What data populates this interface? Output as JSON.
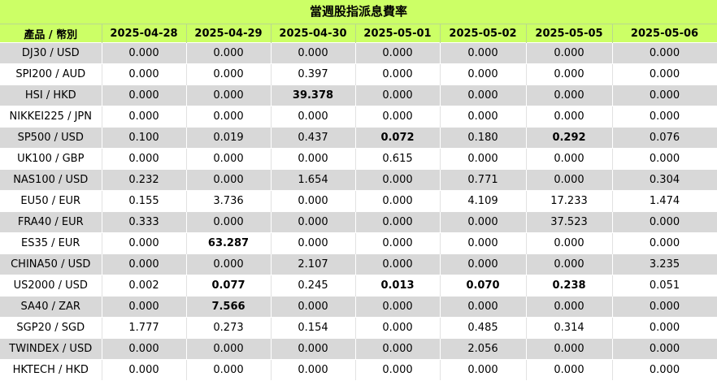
{
  "title": "當週股指派息費率",
  "header": {
    "product_label": "產品 / 幣別",
    "dates": [
      "2025-04-28",
      "2025-04-29",
      "2025-04-30",
      "2025-05-01",
      "2025-05-02",
      "2025-05-05",
      "2025-05-06"
    ]
  },
  "rows": [
    {
      "product": "DJ30 / USD",
      "values": [
        "0.000",
        "0.000",
        "0.000",
        "0.000",
        "0.000",
        "0.000",
        "0.000"
      ],
      "bold": []
    },
    {
      "product": "SPI200 / AUD",
      "values": [
        "0.000",
        "0.000",
        "0.397",
        "0.000",
        "0.000",
        "0.000",
        "0.000"
      ],
      "bold": []
    },
    {
      "product": "HSI / HKD",
      "values": [
        "0.000",
        "0.000",
        "39.378",
        "0.000",
        "0.000",
        "0.000",
        "0.000"
      ],
      "bold": [
        2
      ]
    },
    {
      "product": "NIKKEI225 / JPN",
      "values": [
        "0.000",
        "0.000",
        "0.000",
        "0.000",
        "0.000",
        "0.000",
        "0.000"
      ],
      "bold": []
    },
    {
      "product": "SP500 / USD",
      "values": [
        "0.100",
        "0.019",
        "0.437",
        "0.072",
        "0.180",
        "0.292",
        "0.076"
      ],
      "bold": [
        3,
        5
      ]
    },
    {
      "product": "UK100 / GBP",
      "values": [
        "0.000",
        "0.000",
        "0.000",
        "0.615",
        "0.000",
        "0.000",
        "0.000"
      ],
      "bold": []
    },
    {
      "product": "NAS100 / USD",
      "values": [
        "0.232",
        "0.000",
        "1.654",
        "0.000",
        "0.771",
        "0.000",
        "0.304"
      ],
      "bold": []
    },
    {
      "product": "EU50 / EUR",
      "values": [
        "0.155",
        "3.736",
        "0.000",
        "0.000",
        "4.109",
        "17.233",
        "1.474"
      ],
      "bold": []
    },
    {
      "product": "FRA40 / EUR",
      "values": [
        "0.333",
        "0.000",
        "0.000",
        "0.000",
        "0.000",
        "37.523",
        "0.000"
      ],
      "bold": []
    },
    {
      "product": "ES35 / EUR",
      "values": [
        "0.000",
        "63.287",
        "0.000",
        "0.000",
        "0.000",
        "0.000",
        "0.000"
      ],
      "bold": [
        1
      ]
    },
    {
      "product": "CHINA50 / USD",
      "values": [
        "0.000",
        "0.000",
        "2.107",
        "0.000",
        "0.000",
        "0.000",
        "3.235"
      ],
      "bold": []
    },
    {
      "product": "US2000 / USD",
      "values": [
        "0.002",
        "0.077",
        "0.245",
        "0.013",
        "0.070",
        "0.238",
        "0.051"
      ],
      "bold": [
        1,
        3,
        4,
        5
      ]
    },
    {
      "product": "SA40 / ZAR",
      "values": [
        "0.000",
        "7.566",
        "0.000",
        "0.000",
        "0.000",
        "0.000",
        "0.000"
      ],
      "bold": [
        1
      ]
    },
    {
      "product": "SGP20 / SGD",
      "values": [
        "1.777",
        "0.273",
        "0.154",
        "0.000",
        "0.485",
        "0.314",
        "0.000"
      ],
      "bold": []
    },
    {
      "product": "TWINDEX / USD",
      "values": [
        "0.000",
        "0.000",
        "0.000",
        "0.000",
        "2.056",
        "0.000",
        "0.000"
      ],
      "bold": []
    },
    {
      "product": "HKTECH / HKD",
      "values": [
        "0.000",
        "0.000",
        "0.000",
        "0.000",
        "0.000",
        "0.000",
        "0.000"
      ],
      "bold": []
    }
  ]
}
